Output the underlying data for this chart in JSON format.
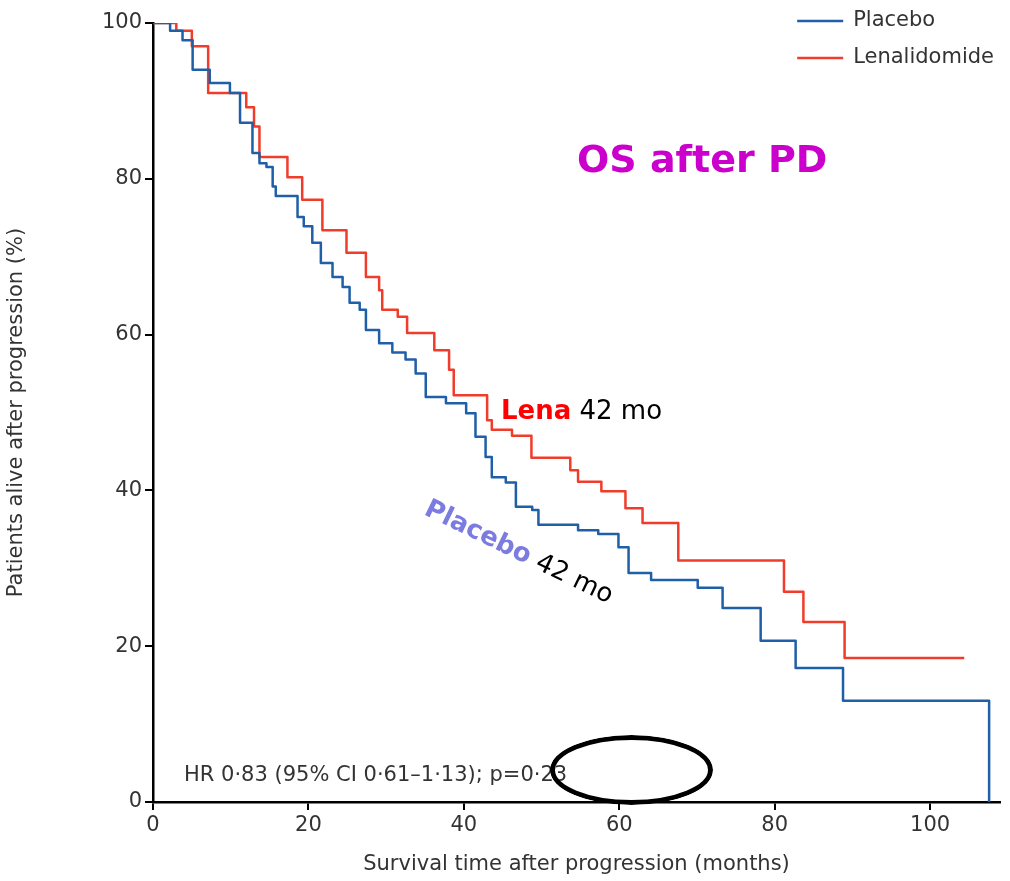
{
  "chart_data": {
    "type": "step",
    "title": "OS after PD",
    "xlabel": "Survival time after progression (months)",
    "ylabel": "Patients alive after progression (%)",
    "xlim": [
      0,
      109
    ],
    "xticks": [
      0,
      20,
      40,
      60,
      80,
      100
    ],
    "ylim": [
      0,
      100
    ],
    "yticks": [
      0,
      20,
      40,
      60,
      80,
      100
    ],
    "grid": false,
    "legend": "top right",
    "marker": "none",
    "line_style": "solid",
    "series": [
      {
        "name": "Placebo",
        "color": "#1f5fa8",
        "x": [
          0,
          2.2,
          3.8,
          5.1,
          7.3,
          9.9,
          11.2,
          12.8,
          13.7,
          14.6,
          15.4,
          15.8,
          18.6,
          19.4,
          20.5,
          21.6,
          23.1,
          24.4,
          25.3,
          26.6,
          27.4,
          29.1,
          30.8,
          32.5,
          33.8,
          35.1,
          37.7,
          40.3,
          41.5,
          42.8,
          43.6,
          45.4,
          46.7,
          48.8,
          49.6,
          54.7,
          57.3,
          59.9,
          61.2,
          64.1,
          70.1,
          73.3,
          78.2,
          82.7,
          88.8,
          107.6
        ],
        "values": [
          100,
          99,
          97.8,
          94,
          92.3,
          91,
          87.2,
          83.3,
          82,
          81.5,
          79,
          77.8,
          75.1,
          73.9,
          71.8,
          69.2,
          67.4,
          66.1,
          64.1,
          63.2,
          60.6,
          58.9,
          57.7,
          56.8,
          55,
          52,
          51.2,
          49.9,
          46.9,
          44.3,
          41.7,
          41,
          37.9,
          37.5,
          35.6,
          34.9,
          34.4,
          32.7,
          29.4,
          28.5,
          27.5,
          24.9,
          20.7,
          17.2,
          13,
          0
        ]
      },
      {
        "name": "Lenalidomide",
        "color": "#f03c2a",
        "x": [
          0,
          3,
          5,
          7.1,
          12,
          13,
          13.7,
          17.3,
          19.2,
          21.8,
          24.9,
          27.4,
          29.1,
          29.5,
          31.5,
          32.7,
          36.2,
          38.1,
          38.7,
          43,
          43.6,
          46.2,
          48.7,
          53.7,
          54.7,
          57.7,
          60.8,
          63,
          67.6,
          81.2,
          83.7,
          89,
          104.4
        ],
        "values": [
          100,
          99,
          97,
          91,
          89.2,
          86.7,
          82.8,
          80.2,
          77.3,
          73.4,
          70.5,
          67.4,
          65.7,
          63.2,
          62.3,
          60.2,
          58,
          55.5,
          52.2,
          49,
          47.8,
          47,
          44.2,
          42.6,
          41.1,
          39.9,
          37.7,
          35.8,
          31,
          27,
          23.1,
          18.5,
          18.5
        ]
      }
    ],
    "annotations": [
      "Lena 42 mo",
      "Placebo 42 mo",
      "HR 0·83 (95% CI 0·61–1·13); p=0·23"
    ]
  }
}
